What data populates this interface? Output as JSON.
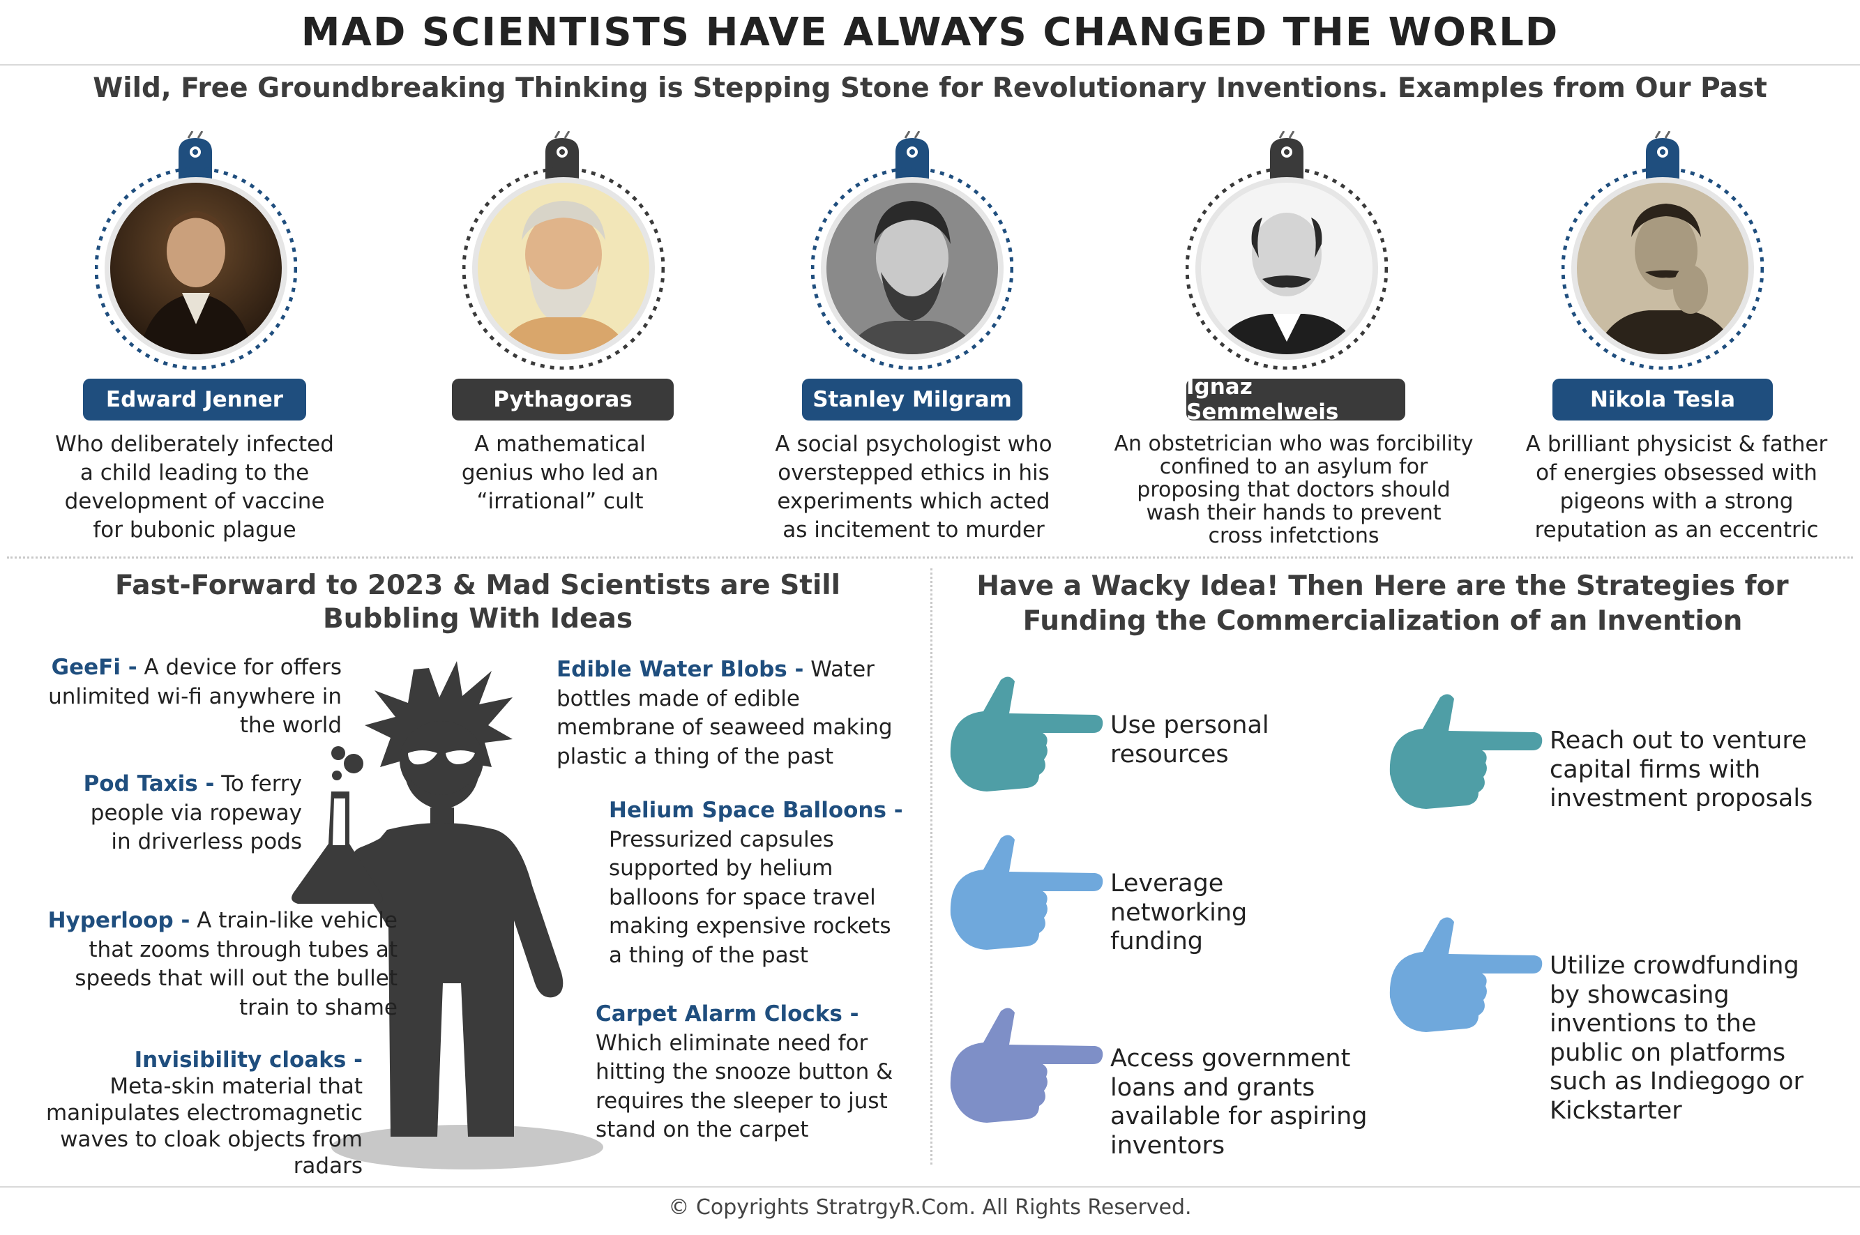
{
  "header": {
    "title": "MAD SCIENTISTS HAVE ALWAYS CHANGED THE WORLD",
    "subtitle": "Wild, Free Groundbreaking Thinking is Stepping Stone for Revolutionary Inventions. Examples from Our Past"
  },
  "scientists": [
    {
      "name": "Edward Jenner",
      "desc_lines": [
        "Who deliberately infected",
        "a child leading to the",
        "development of vaccine",
        "for bubonic plague"
      ]
    },
    {
      "name": "Pythagoras",
      "desc_lines": [
        "A mathematical",
        "genius who led an",
        "“irrational” cult"
      ]
    },
    {
      "name": "Stanley Milgram",
      "desc_lines": [
        "A social psychologist who",
        "overstepped ethics in his",
        "experiments which acted",
        "as incitement to murder"
      ]
    },
    {
      "name": "Ignaz Semmelweis",
      "desc_lines": [
        "An obstetrician who was forcibility",
        "confined to an asylum for",
        "proposing that doctors should",
        "wash their hands to prevent",
        "cross infetctions"
      ]
    },
    {
      "name": "Nikola Tesla",
      "desc_lines": [
        "A brilliant physicist & father",
        "of energies obsessed with",
        "pigeons with a strong",
        "reputation as an eccentric"
      ]
    }
  ],
  "ideas_section": {
    "title_lines": [
      "Fast-Forward to 2023 & Mad Scientists are Still",
      "Bubbling With Ideas"
    ],
    "left": [
      {
        "keyword": "GeeFi -",
        "lines": [
          " A device for offers",
          "unlimited wi-fi anywhere in",
          "the world"
        ]
      },
      {
        "keyword": "Pod Taxis -",
        "lines": [
          " To ferry",
          "people via ropeway",
          "in driverless pods"
        ]
      },
      {
        "keyword": "Hyperloop -",
        "lines": [
          " A train-like vehicle",
          "that zooms through tubes at",
          "speeds that will out the bullet",
          "train to shame"
        ]
      },
      {
        "keyword": "Invisibility cloaks -",
        "lines": [
          "Meta-skin material that",
          "manipulates electromagnetic",
          "waves to cloak objects from",
          "radars"
        ]
      }
    ],
    "right": [
      {
        "keyword": "Edible Water Blobs -",
        "lines": [
          " Water",
          "bottles made of edible",
          "membrane of seaweed making",
          "plastic a thing of the past"
        ]
      },
      {
        "keyword": "Helium Space Balloons -",
        "lines": [
          "Pressurized capsules",
          "supported by helium",
          "balloons for space travel",
          "making expensive rockets",
          "a thing of the past"
        ]
      },
      {
        "keyword": "Carpet Alarm Clocks -",
        "lines": [
          "Which eliminate need for",
          "hitting the snooze button &",
          "requires the sleeper to just",
          "stand on the carpet"
        ]
      }
    ]
  },
  "strategies_section": {
    "title_lines": [
      "Have a Wacky Idea! Then Here are the Strategies for",
      "Funding the Commercialization of an Invention"
    ],
    "items": [
      {
        "lines": [
          "Use personal",
          "resources"
        ],
        "color": "#4f9ea6"
      },
      {
        "lines": [
          "Leverage",
          "networking",
          "funding"
        ],
        "color": "#6fa8dc"
      },
      {
        "lines": [
          "Access government",
          "loans and grants",
          "available for aspiring",
          "inventors"
        ],
        "color": "#7e8fc7"
      },
      {
        "lines": [
          "Reach out to venture",
          "capital firms with",
          "investment proposals"
        ],
        "color": "#4f9ea6"
      },
      {
        "lines": [
          "Utilize crowdfunding",
          "by showcasing",
          "inventions to the",
          "public on platforms",
          "such as Indiegogo or",
          "Kickstarter"
        ],
        "color": "#6fa8dc"
      }
    ]
  },
  "footer": {
    "copyright": "© Copyrights StratrgyR.Com. All Rights Reserved."
  },
  "colors": {
    "accent_blue": "#1f4e7e",
    "dark": "#3a3a3a",
    "silhouette": "#3b3b3b"
  }
}
